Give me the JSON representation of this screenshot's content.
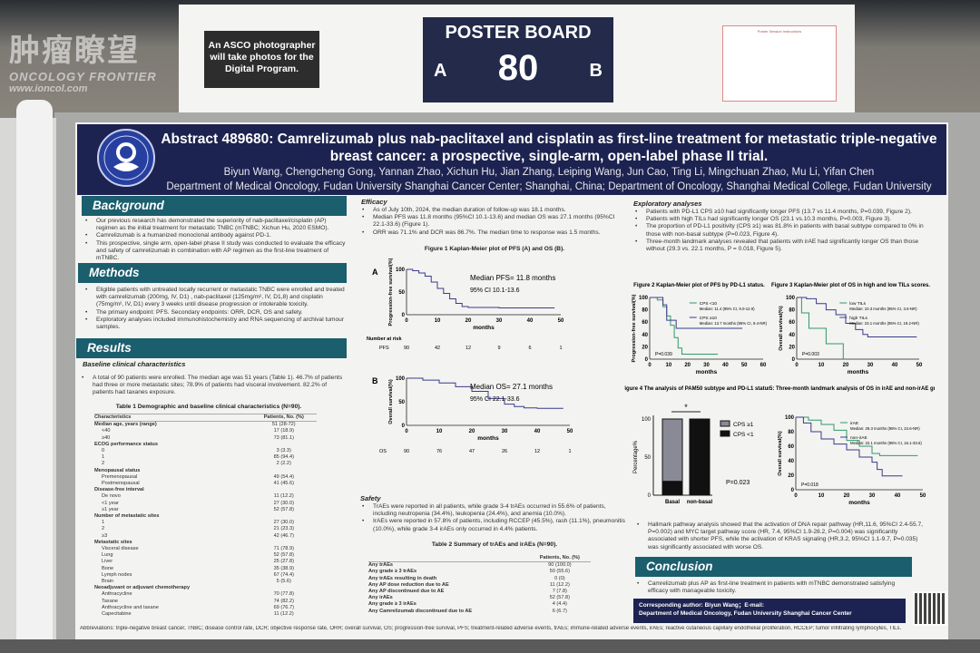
{
  "watermark": {
    "cn": "肿瘤瞭望",
    "en": "ONCOLOGY FRONTIER",
    "url": "www.ioncol.com"
  },
  "board": {
    "asco_notice": "An ASCO photographer will take photos for the Digital Program.",
    "poster_board_label": "POSTER BOARD",
    "board_number": "80",
    "side_a": "A",
    "side_b": "B",
    "instructions": "Poster Session Instructions"
  },
  "poster": {
    "title": "Abstract 489680: Camrelizumab plus nab-paclitaxel and cisplatin as first-line treatment for metastatic triple-negative breast cancer: a prospective, single-arm, open-label phase II trial.",
    "authors": "Biyun Wang, Chengcheng Gong, Yannan Zhao, Xichun Hu, Jian Zhang, Leiping Wang, Jun Cao, Ting Li, Mingchuan Zhao, Mu Li, Yifan Chen",
    "affiliation": "Department of Medical Oncology, Fudan University Shanghai Cancer Center; Shanghai, China; Department of Oncology, Shanghai Medical College, Fudan University",
    "logo_text": "FUDAN UNIVERSITY SHANGHAI CANCER CENTER",
    "background": {
      "heading": "Background",
      "bullets": [
        "Our previous research has demonstrated the superiority of nab-paclitaxel/cisplatin (AP) regimen as the initial treatment for metastatic TNBC (mTNBC; Xichun Hu, 2020 ESMO).",
        "Camrelizumab is a humanized monoclonal antibody against PD-1.",
        "This prospective, single arm, open-label phase II study was conducted to evaluate the efficacy and safety of camrelizumab in combination with AP regimen as the first-line treatment of mTNBC."
      ]
    },
    "methods": {
      "heading": "Methods",
      "bullets": [
        "Eligible patients with untreated locally recurrent or metastatic TNBC were enrolled and treated with camrelizumab (200mg, IV, D1) , nab-paclitaxel (125mg/m², IV, D1,8) and cisplatin (75mg/m², IV, D1) every 3 weeks until disease progression or intolerable toxicity.",
        "The primary endpoint: PFS. Secondary endpoints: ORR, DCR, OS and safety.",
        "Exploratory analyses included immunohistochemistry and RNA sequencing of archival tumour samples."
      ]
    },
    "results": {
      "heading": "Results",
      "baseline_heading": "Baseline clinical characteristics",
      "baseline_bullet": "A total of 90 patients were enrolled. The median age was 51 years (Table 1). 46.7% of patients had three or more metastatic sites; 78.9% of patients had visceral involvement. 82.2% of patients had taxanes exposure.",
      "table1": {
        "caption": "Table 1 Demographic and baseline clinical characteristics (N=90).",
        "headers": [
          "Characteristics",
          "Patients, No. (%)"
        ],
        "rows": [
          {
            "label": "Median age, years (range)",
            "value": "51 (28-72)",
            "bold": true
          },
          {
            "label": "<40",
            "value": "17 (18.9)"
          },
          {
            "label": "≥40",
            "value": "73 (81.1)"
          },
          {
            "label": "ECOG performance status",
            "value": "",
            "bold": true
          },
          {
            "label": "0",
            "value": "3 (3.3)"
          },
          {
            "label": "1",
            "value": "85 (94.4)"
          },
          {
            "label": "2",
            "value": "2 (2.2)"
          },
          {
            "label": "Menopausal status",
            "value": "",
            "bold": true
          },
          {
            "label": "Premenopausal",
            "value": "49 (54.4)"
          },
          {
            "label": "Postmenopausal",
            "value": "41 (45.6)"
          },
          {
            "label": "Disease-free interval",
            "value": "",
            "bold": true
          },
          {
            "label": "De novo",
            "value": "11 (12.2)"
          },
          {
            "label": "<1 year",
            "value": "27 (30.0)"
          },
          {
            "label": "≥1 year",
            "value": "52 (57.8)"
          },
          {
            "label": "Number of metastatic sites",
            "value": "",
            "bold": true
          },
          {
            "label": "1",
            "value": "27 (30.0)"
          },
          {
            "label": "2",
            "value": "21 (23.3)"
          },
          {
            "label": "≥3",
            "value": "42 (46.7)"
          },
          {
            "label": "Metastatic sites",
            "value": "",
            "bold": true
          },
          {
            "label": "Visceral disease",
            "value": "71 (78.9)"
          },
          {
            "label": "Lung",
            "value": "52 (57.8)"
          },
          {
            "label": "Liver",
            "value": "25 (27.8)"
          },
          {
            "label": "Bone",
            "value": "35 (38.9)"
          },
          {
            "label": "Lymph nodes",
            "value": "67 (74.4)"
          },
          {
            "label": "Brain",
            "value": "5 (5.6)"
          },
          {
            "label": "Neoadjuvant or adjuvant chemotherapy",
            "value": "",
            "bold": true
          },
          {
            "label": "Anthracycline",
            "value": "70 (77.8)"
          },
          {
            "label": "Taxane",
            "value": "74 (82.2)"
          },
          {
            "label": "Anthracycline and taxane",
            "value": "69 (76.7)"
          },
          {
            "label": "Capecitabine",
            "value": "11 (12.2)"
          }
        ]
      }
    },
    "efficacy": {
      "heading": "Efficacy",
      "bullets": [
        "As of July 10th, 2024, the median duration of follow-up was 18.1 months.",
        "Median PFS was 11.8 months (95%CI 10.1-13.6) and median OS was 27.1 months (95%CI 22.1-33.6) (Figure 1).",
        "ORR was 71.1% and DCR was 86.7%. The median time to response was 1.5 months."
      ],
      "figure1_caption": "Figure 1 Kaplan-Meier plot of PFS (A) and OS (B)."
    },
    "safety": {
      "heading": "Safety",
      "bullets": [
        "TrAEs were reported in all patients, while grade 3-4 trAEs occurred in 55.6% of patients, including neutropenia (34.4%), leukopenia (24.4%), and anemia (10.0%).",
        "IrAEs were reported in 57.8% of patients, including RCCEP (45.5%), rash (11.1%), pneumonitis (10.0%), while grade 3-4 irAEs only occurred in 4.4% patients."
      ],
      "table2": {
        "caption": "Table 2 Summary of trAEs and irAEs (N=90).",
        "headers": [
          "",
          "Patients, No. (%)"
        ],
        "rows": [
          {
            "label": "Any trAEs",
            "value": "90 (100.0)"
          },
          {
            "label": "Any grade ≥ 3 trAEs",
            "value": "50 (55.6)"
          },
          {
            "label": "Any trAEs resulting in death",
            "value": "0 (0)"
          },
          {
            "label": "Any AP dose reduction due to AE",
            "value": "11 (12.2)"
          },
          {
            "label": "Any AP discontinued due to AE",
            "value": "7 (7.8)"
          },
          {
            "label": "Any irAEs",
            "value": "52 (57.8)"
          },
          {
            "label": "Any grade ≥ 3 irAEs",
            "value": "4 (4.4)"
          },
          {
            "label": "Any Camrelizumab discontinued due to AE",
            "value": "6 (6.7)"
          }
        ]
      }
    },
    "exploratory": {
      "heading": "Exploratory analyses",
      "bullets": [
        "Patients with PD-L1 CPS ≥10 had significantly longer PFS (13.7 vs 11.4 months, P=0.039, Figure 2).",
        "Patients with high TILs had significantly longer OS (23.1 vs.10.3 months, P=0.003, Figure 3).",
        "The proportion of PD-L1 positivity (CPS ≥1) was 81.8% in patients with basal subtype compared to 0% in those with non-basal subtype (P=0.023, Figure 4).",
        "Three-month landmark analyses revealed that patients with irAE had significantly longer OS than those without (29.3 vs. 22.1 months, P = 0.018, Figure 5)."
      ],
      "hallmark": "Hallmark pathway analysis showed that the activation of DNA repair pathway (HR,11.6, 95%CI 2.4-55.7, P=0.002) and MYC target pathway score (HR, 7.4, 95%CI 1.9-28.2, P=0.004) was significantly associated with shorter PFS, while the activation of KRAS signaling (HR,3.2, 95%CI 1.1-9.7, P=0.035) was significantly associated with worse OS."
    },
    "conclusion": {
      "heading": "Conclusion",
      "bullet": "Camrelizumab plus AP as first-line treatment in patients with mTNBC demonstrated satisfying efficacy with manageable toxicity.",
      "corresponding": "Corresponding author: Biyun Wang；E-mail:",
      "department": "Department of Medical Oncology, Fudan University Shanghai Cancer Center"
    },
    "abbreviations": "Abbreviations: triple-negative breast cancer, TNBC; disease control rate, DCR; objective response rate, ORR; overall survival, OS; progression-free survival, PFS; treatment-related adverse events, trAEs; immune-related adverse events, irAEs; reactive cutaneous capillary endothelial proliferation, RCCEP; tumor infiltrating lymphocytes, TILs."
  },
  "colors": {
    "navy": "#1d2350",
    "teal": "#1b5e6e",
    "green": "#2f9a6a",
    "purple": "#3b3b8c"
  },
  "chart_data": [
    {
      "id": "fig1a",
      "type": "line",
      "panel": "A",
      "ylabel": "Progression-free survival(%)",
      "xlabel": "months",
      "xlim": [
        0,
        50
      ],
      "ylim": [
        0,
        100
      ],
      "xticks": [
        0,
        10,
        20,
        30,
        40,
        50
      ],
      "yticks": [
        0,
        50,
        100
      ],
      "annotation": [
        "Median PFS= 11.8 months",
        "95% CI 10.1-13.6"
      ],
      "risk_label": "Number at risk",
      "risk_row": "PFS",
      "risk": [
        90,
        42,
        12,
        9,
        6,
        1
      ],
      "series": [
        {
          "color": "#3b3b8c",
          "points": [
            [
              0,
              100
            ],
            [
              2,
              97
            ],
            [
              4,
              92
            ],
            [
              6,
              85
            ],
            [
              8,
              72
            ],
            [
              10,
              58
            ],
            [
              12,
              47
            ],
            [
              14,
              35
            ],
            [
              16,
              25
            ],
            [
              18,
              18
            ],
            [
              20,
              16
            ],
            [
              30,
              15
            ],
            [
              40,
              15
            ],
            [
              48,
              15
            ]
          ]
        }
      ]
    },
    {
      "id": "fig1b",
      "type": "line",
      "panel": "B",
      "ylabel": "Overall survival(%)",
      "xlabel": "months",
      "xlim": [
        0,
        50
      ],
      "ylim": [
        0,
        100
      ],
      "xticks": [
        0,
        10,
        20,
        30,
        40,
        50
      ],
      "yticks": [
        0,
        50,
        100
      ],
      "annotation": [
        "Median OS= 27.1 months",
        "95% CI 22.1-33.6"
      ],
      "risk_row": "OS",
      "risk": [
        90,
        76,
        47,
        26,
        12,
        1
      ],
      "series": [
        {
          "color": "#3b3b8c",
          "points": [
            [
              0,
              100
            ],
            [
              5,
              96
            ],
            [
              10,
              90
            ],
            [
              15,
              82
            ],
            [
              20,
              72
            ],
            [
              25,
              57
            ],
            [
              30,
              45
            ],
            [
              33,
              40
            ],
            [
              36,
              37
            ],
            [
              40,
              36
            ],
            [
              48,
              36
            ]
          ]
        }
      ]
    },
    {
      "id": "fig2",
      "type": "line",
      "title": "Figure 2 Kaplan-Meier plot of PFS by PD-L1 status.",
      "ylabel": "Progression-free survival(%)",
      "xlabel": "months",
      "xlim": [
        0,
        60
      ],
      "ylim": [
        0,
        100
      ],
      "xticks": [
        0,
        10,
        20,
        30,
        40,
        50,
        60
      ],
      "yticks": [
        0,
        20,
        40,
        60,
        80,
        100
      ],
      "pvalue": "P=0.039",
      "series": [
        {
          "name": "CPS <10",
          "label2": "Median: 11.4 (95% CI, 9.0-12.9)",
          "color": "#2f9a6a",
          "points": [
            [
              0,
              100
            ],
            [
              4,
              96
            ],
            [
              7,
              85
            ],
            [
              9,
              70
            ],
            [
              11,
              55
            ],
            [
              13,
              35
            ],
            [
              15,
              18
            ],
            [
              17,
              8
            ],
            [
              36,
              8
            ]
          ]
        },
        {
          "name": "CPS ≥10",
          "label2": "Median: 13.7 months (95% CI, 9.4-NR)",
          "color": "#3b3b8c",
          "points": [
            [
              0,
              100
            ],
            [
              5,
              100
            ],
            [
              7,
              88
            ],
            [
              9,
              63
            ],
            [
              13,
              63
            ],
            [
              14,
              50
            ],
            [
              49,
              50
            ]
          ]
        }
      ]
    },
    {
      "id": "fig3",
      "type": "line",
      "title": "Figure 3 Kaplan-Meier plot of OS in high and low TILs scores.",
      "ylabel": "Overall survival(%)",
      "xlabel": "months",
      "xlim": [
        0,
        50
      ],
      "ylim": [
        0,
        100
      ],
      "xticks": [
        0,
        10,
        20,
        30,
        40,
        50
      ],
      "yticks": [
        0,
        20,
        40,
        60,
        80,
        100
      ],
      "pvalue": "P=0.003",
      "series": [
        {
          "name": "low TILs",
          "label2": "Median: 10.3 months (95% CI, 3.6-NR)",
          "color": "#2f9a6a",
          "points": [
            [
              0,
              100
            ],
            [
              2,
              100
            ],
            [
              2,
              75
            ],
            [
              5,
              75
            ],
            [
              5,
              50
            ],
            [
              12,
              50
            ],
            [
              12,
              25
            ],
            [
              19,
              25
            ],
            [
              19,
              0
            ]
          ]
        },
        {
          "name": "high TILs",
          "label2": "Median: 23.1 months (95% CI, 19.2-NR)",
          "color": "#3b3b8c",
          "points": [
            [
              0,
              100
            ],
            [
              4,
              98
            ],
            [
              8,
              90
            ],
            [
              12,
              80
            ],
            [
              16,
              72
            ],
            [
              20,
              58
            ],
            [
              24,
              48
            ],
            [
              27,
              40
            ],
            [
              29,
              36
            ],
            [
              49,
              36
            ]
          ]
        }
      ]
    },
    {
      "id": "fig4",
      "type": "bar",
      "title": "Figure 4 The analysis of PAM50 subtype and PD-L1 status.",
      "ylabel": "Percentage%",
      "categories": [
        "Basal",
        "non-basal"
      ],
      "ylim": [
        0,
        100
      ],
      "yticks": [
        0,
        50,
        100
      ],
      "significance": "*",
      "pvalue": "P=0.023",
      "series": [
        {
          "name": "CPS ≥1",
          "color": "#8a8a96",
          "values": [
            81.8,
            0
          ]
        },
        {
          "name": "CPS <1",
          "color": "#111111",
          "values": [
            18.2,
            100
          ]
        }
      ]
    },
    {
      "id": "fig5",
      "type": "line",
      "title": "Figure 5: Three-month landmark analysis of OS in irAE and non-irAE groups.",
      "ylabel": "Overall survival(%)",
      "xlabel": "months",
      "xlim": [
        0,
        50
      ],
      "ylim": [
        0,
        100
      ],
      "xticks": [
        0,
        10,
        20,
        30,
        40,
        50
      ],
      "yticks": [
        0,
        20,
        40,
        60,
        80,
        100
      ],
      "pvalue": "P=0.018",
      "series": [
        {
          "name": "irAE",
          "label2": "Median: 29.3 months (95% CI, 24.6-NR)",
          "color": "#2f9a6a",
          "points": [
            [
              0,
              100
            ],
            [
              5,
              96
            ],
            [
              10,
              90
            ],
            [
              15,
              82
            ],
            [
              20,
              68
            ],
            [
              25,
              60
            ],
            [
              30,
              50
            ],
            [
              33,
              47
            ],
            [
              48,
              47
            ]
          ]
        },
        {
          "name": "non-irAE",
          "label2": "Median: 22.1 months (95% CI, 16.1-33.6)",
          "color": "#3b3b8c",
          "points": [
            [
              0,
              100
            ],
            [
              3,
              92
            ],
            [
              6,
              80
            ],
            [
              10,
              70
            ],
            [
              15,
              63
            ],
            [
              20,
              55
            ],
            [
              25,
              45
            ],
            [
              30,
              38
            ],
            [
              32,
              28
            ],
            [
              34,
              19
            ],
            [
              42,
              19
            ]
          ]
        }
      ]
    }
  ]
}
